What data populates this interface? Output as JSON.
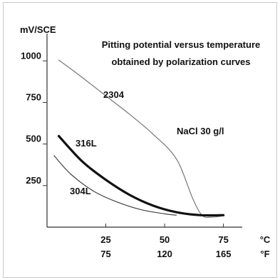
{
  "chart_data": {
    "type": "line",
    "title": "Pitting potential versus temperature",
    "subtitle": "obtained by polarization curves",
    "ylabel": "mV/SCE",
    "xunit_c": "°C",
    "xunit_f": "°F",
    "annotation": "NaCl 30 g/l",
    "ylim": [
      0,
      1130
    ],
    "xlim": [
      0,
      83
    ],
    "y_ticks": [
      {
        "value": 250,
        "label": "250"
      },
      {
        "value": 500,
        "label": "500"
      },
      {
        "value": 750,
        "label": "750"
      },
      {
        "value": 1000,
        "label": "1000"
      }
    ],
    "x_ticks": [
      {
        "value": 25,
        "label_c": "25",
        "label_f": "75"
      },
      {
        "value": 50,
        "label_c": "50",
        "label_f": "120"
      },
      {
        "value": 75,
        "label_c": "75",
        "label_f": "165"
      }
    ],
    "series": [
      {
        "name": "2304",
        "color": "#777777",
        "width": 1.2,
        "points": [
          [
            5,
            1005
          ],
          [
            15,
            900
          ],
          [
            25,
            790
          ],
          [
            35,
            680
          ],
          [
            45,
            560
          ],
          [
            55,
            410
          ],
          [
            62,
            170
          ],
          [
            66,
            70
          ],
          [
            70,
            60
          ],
          [
            75,
            68
          ]
        ]
      },
      {
        "name": "316L",
        "color": "#111111",
        "width": 3.2,
        "points": [
          [
            5,
            548
          ],
          [
            15,
            395
          ],
          [
            25,
            285
          ],
          [
            35,
            195
          ],
          [
            45,
            130
          ],
          [
            55,
            90
          ],
          [
            65,
            72
          ],
          [
            75,
            72
          ]
        ]
      },
      {
        "name": "304L",
        "color": "#444444",
        "width": 1.2,
        "points": [
          [
            3,
            430
          ],
          [
            10,
            320
          ],
          [
            20,
            215
          ],
          [
            30,
            150
          ],
          [
            40,
            105
          ],
          [
            50,
            80
          ],
          [
            55,
            72
          ]
        ]
      }
    ],
    "grid": false,
    "legend": "none"
  }
}
